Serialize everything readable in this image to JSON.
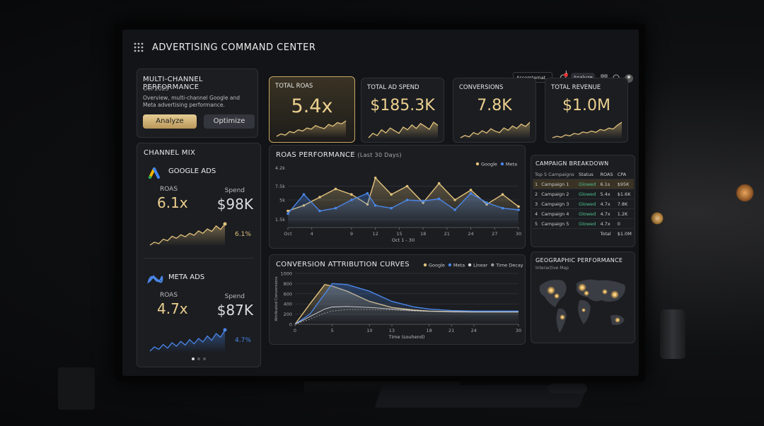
{
  "header": {
    "title": "ADVERTISING COMMAND CENTER",
    "account": "Assomternat",
    "notifications": "1",
    "button": "Analyze"
  },
  "overview": {
    "title": "MULTI-CHANNEL PERFORMANCE",
    "date": "Oct 2023",
    "description": "Overview, multi-channel Google and Meta advertising performance.",
    "buttons": [
      "Analyze",
      "Optimize"
    ]
  },
  "kpis": [
    {
      "label": "TOTAL ROAS",
      "value": "5.4x",
      "trend": [
        3,
        3.4,
        3.2,
        3.8,
        3.6,
        4.1,
        3.9,
        4.4,
        4.2,
        4.8,
        4.5,
        4.3,
        5,
        4.7,
        5.3,
        5.1,
        5.6
      ]
    },
    {
      "label": "TOTAL AD SPEND",
      "value": "$185.3K",
      "trend": [
        2,
        3,
        2.5,
        3.8,
        3.1,
        4.2,
        3.6,
        3,
        4.4,
        3.8,
        4.9,
        4.1,
        5.2,
        4.6,
        3.9,
        5.5,
        4.8
      ]
    },
    {
      "label": "CONVERSIONS",
      "value": "7.8K",
      "trend": [
        2.5,
        3,
        2.7,
        3.6,
        3.2,
        4,
        3.5,
        4.4,
        3.9,
        3.6,
        4.6,
        4.1,
        5,
        4.5,
        5.4,
        4.9,
        5.8
      ]
    },
    {
      "label": "TOTAL REVENUE",
      "value": "$1.0M",
      "trend": [
        2,
        2.3,
        2.1,
        2.6,
        2.4,
        2.9,
        2.7,
        3.2,
        3,
        3.4,
        3.1,
        3.7,
        3.5,
        4,
        3.8,
        4.6,
        5.2
      ]
    }
  ],
  "channel_mix": {
    "title": "CHANNEL MIX",
    "channels": [
      {
        "name": "GOOGLE ADS",
        "roas_label": "ROAS",
        "roas": "6.1x",
        "spend_label": "Spend",
        "spend": "$98K",
        "change": "6.1%",
        "color": "#e2c27c",
        "trend": [
          1,
          1.6,
          1.3,
          2.2,
          1.9,
          2.8,
          2.4,
          3.1,
          2.7,
          3.4,
          3,
          3.9,
          3.4,
          4.3,
          3.8,
          4.9,
          4.2,
          5.3
        ]
      },
      {
        "name": "META ADS",
        "roas_label": "ROAS",
        "roas": "4.7x",
        "spend_label": "Spend",
        "spend": "$87K",
        "change": "4.7%",
        "color": "#4a86e8",
        "trend": [
          1.5,
          2.2,
          1.8,
          2.6,
          2,
          2.9,
          2.3,
          3.1,
          2.5,
          3.4,
          2.7,
          3.6,
          3,
          4,
          3.3,
          4.4,
          3.8,
          5
        ]
      }
    ]
  },
  "roas_chart": {
    "type": "line",
    "title": "ROAS PERFORMANCE",
    "subtitle": "(Last 30 Days)",
    "x_label": "Oct 1 - 30",
    "y_axis_note": "4.2k",
    "grid": true,
    "xlim": [
      1,
      30
    ],
    "ylim": [
      0,
      10000
    ],
    "xticks": [
      {
        "value": 1,
        "label": "Oct"
      },
      4,
      9,
      12,
      15,
      18,
      21,
      24,
      27,
      30
    ],
    "yticks": [
      {
        "value": 1500,
        "label": "1.5k"
      },
      {
        "value": 5000,
        "label": "5k"
      },
      {
        "value": 7500,
        "label": "7.5k"
      }
    ],
    "x": [
      1,
      3,
      5,
      7,
      9,
      11,
      12,
      14,
      16,
      18,
      20,
      22,
      24,
      26,
      28,
      30
    ],
    "series": [
      {
        "name": "Google",
        "color": "#e2c27c",
        "values": [
          3000,
          4000,
          5500,
          7000,
          6000,
          4200,
          9000,
          6000,
          7500,
          4500,
          8000,
          5000,
          6800,
          4200,
          6000,
          3800
        ]
      },
      {
        "name": "Meta",
        "color": "#4a86e8",
        "values": [
          2500,
          6000,
          3000,
          3500,
          5000,
          6200,
          4000,
          3500,
          5000,
          4800,
          5200,
          3200,
          6200,
          4500,
          3500,
          3200
        ]
      }
    ]
  },
  "campaigns": {
    "title": "CAMPAIGN BREAKDOWN",
    "columns": [
      "Top 5 Campaigns",
      "Status",
      "ROAS",
      "CPA"
    ],
    "rows": [
      [
        "1",
        "Campaign 1",
        "Glowed",
        "6.1s",
        "$95K"
      ],
      [
        "2",
        "Campaign 2",
        "Glowed",
        "5.4x",
        "$1.6K"
      ],
      [
        "3",
        "Campaign 3",
        "Glowed",
        "4.7x",
        "7.8K"
      ],
      [
        "4",
        "Campaign 4",
        "Glowed",
        "4.7x",
        "1.2K"
      ],
      [
        "5",
        "Campaign 5",
        "Glowed",
        "4.7x",
        "0"
      ]
    ],
    "total_label": "Total",
    "total": "$1.0M"
  },
  "attribution_chart": {
    "type": "line",
    "title": "CONVERSION ATTRIBUTION CURVES",
    "x_label": "Time (souhend)",
    "y_label": "Attributed Conversions",
    "grid": true,
    "xlim": [
      0,
      30
    ],
    "ylim": [
      0,
      1000
    ],
    "xticks": [
      0,
      5,
      10,
      13,
      18,
      21,
      24,
      30
    ],
    "yticks": [
      0,
      200,
      400,
      600,
      800,
      1000
    ],
    "x": [
      0,
      2,
      4,
      5,
      7,
      10,
      13,
      16,
      18,
      21,
      24,
      27,
      30
    ],
    "series": [
      {
        "name": "Google",
        "color": "#e2c27c",
        "values": [
          0,
          400,
          780,
          750,
          650,
          450,
          330,
          280,
          260,
          250,
          250,
          250,
          250
        ]
      },
      {
        "name": "Meta",
        "color": "#4a86e8",
        "values": [
          0,
          200,
          600,
          800,
          780,
          650,
          450,
          340,
          300,
          270,
          260,
          260,
          260
        ]
      },
      {
        "name": "Linear",
        "color": "#d8d8d8",
        "values": [
          0,
          150,
          300,
          340,
          350,
          330,
          300,
          270,
          255,
          245,
          240,
          240,
          240
        ]
      },
      {
        "name": "Time Decay",
        "color": "#9a9a9a",
        "values": [
          0,
          100,
          220,
          260,
          290,
          290,
          280,
          260,
          250,
          240,
          235,
          235,
          235
        ]
      }
    ]
  },
  "geo": {
    "title": "GEOGRAPHIC PERFORMANCE",
    "subtitle": "Interactive Map"
  }
}
